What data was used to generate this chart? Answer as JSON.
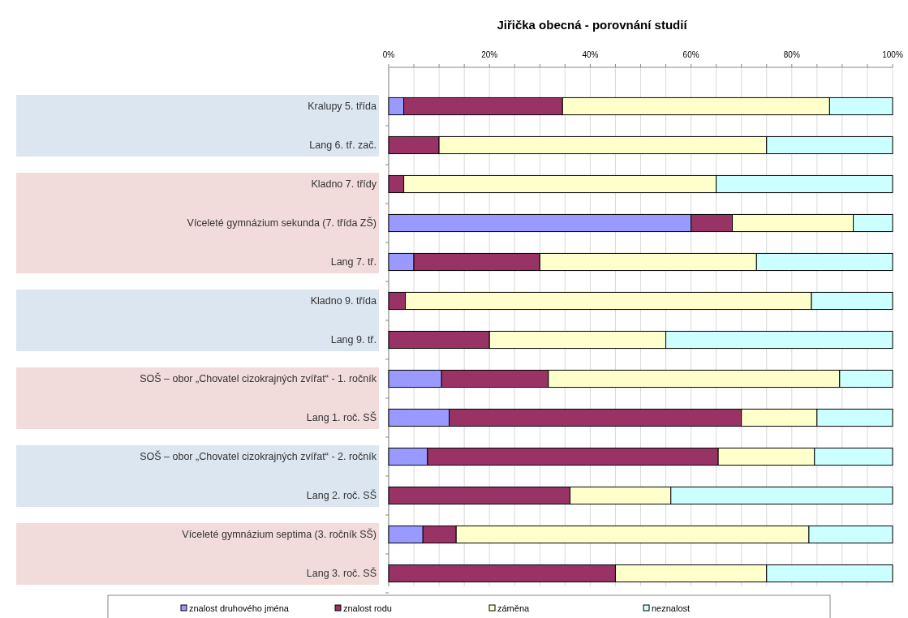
{
  "chart_data": {
    "type": "bar",
    "orientation": "horizontal",
    "stacked": true,
    "title": "Jiřička obecná - porovnání studií",
    "categories": [
      "Kralupy 5. třída",
      "Lang 6. tř. zač.",
      "Kladno 7. třídy",
      "Víceleté gymnázium sekunda (7. třída ZŠ)",
      "Lang 7. tř.",
      "Kladno 9. třída",
      "Lang 9. tř.",
      "SOŠ – obor „Chovatel cizokrajných zvířat“ - 1. ročník",
      "Lang 1. roč. SŠ",
      "SOŠ – obor „Chovatel cizokrajných zvířat“ - 2. ročník",
      "Lang 2. roč. SŠ",
      "Víceleté gymnázium septima (3. ročník SŠ)",
      "Lang 3. roč. SŠ"
    ],
    "series": [
      {
        "name": "znalost druhového jména",
        "color": "#9999ff",
        "values": [
          3,
          0,
          0,
          60,
          5,
          0,
          0,
          10.5,
          12,
          7.7,
          0,
          6.8,
          0
        ]
      },
      {
        "name": "znalost rodu",
        "color": "#993366",
        "values": [
          31.5,
          10,
          3,
          8.2,
          25,
          3.3,
          20,
          21.2,
          58,
          57.7,
          36,
          6.6,
          45
        ]
      },
      {
        "name": "záměna",
        "color": "#ffffcc",
        "values": [
          53,
          65,
          62,
          24,
          43,
          80.6,
          35,
          57.8,
          15,
          19.1,
          20,
          70,
          30
        ]
      },
      {
        "name": "neznalost",
        "color": "#ccffff",
        "values": [
          12.5,
          25,
          35,
          7.8,
          27,
          16.1,
          45,
          10.5,
          15,
          15.5,
          44,
          16.6,
          25
        ]
      }
    ],
    "xlim": [
      0,
      100
    ],
    "xticks": [
      {
        "value": 0,
        "label": "0%"
      },
      {
        "value": 5,
        "label": null
      },
      {
        "value": 10,
        "label": null
      },
      {
        "value": 15,
        "label": null
      },
      {
        "value": 20,
        "label": "20%"
      },
      {
        "value": 25,
        "label": null
      },
      {
        "value": 30,
        "label": null
      },
      {
        "value": 35,
        "label": null
      },
      {
        "value": 40,
        "label": "40%"
      },
      {
        "value": 45,
        "label": null
      },
      {
        "value": 50,
        "label": null
      },
      {
        "value": 55,
        "label": null
      },
      {
        "value": 60,
        "label": "60%"
      },
      {
        "value": 65,
        "label": null
      },
      {
        "value": 70,
        "label": null
      },
      {
        "value": 75,
        "label": null
      },
      {
        "value": 80,
        "label": "80%"
      },
      {
        "value": 85,
        "label": null
      },
      {
        "value": 90,
        "label": null
      },
      {
        "value": 95,
        "label": null
      },
      {
        "value": 100,
        "label": "100%"
      }
    ],
    "grid": "x",
    "legend": "bottom"
  }
}
